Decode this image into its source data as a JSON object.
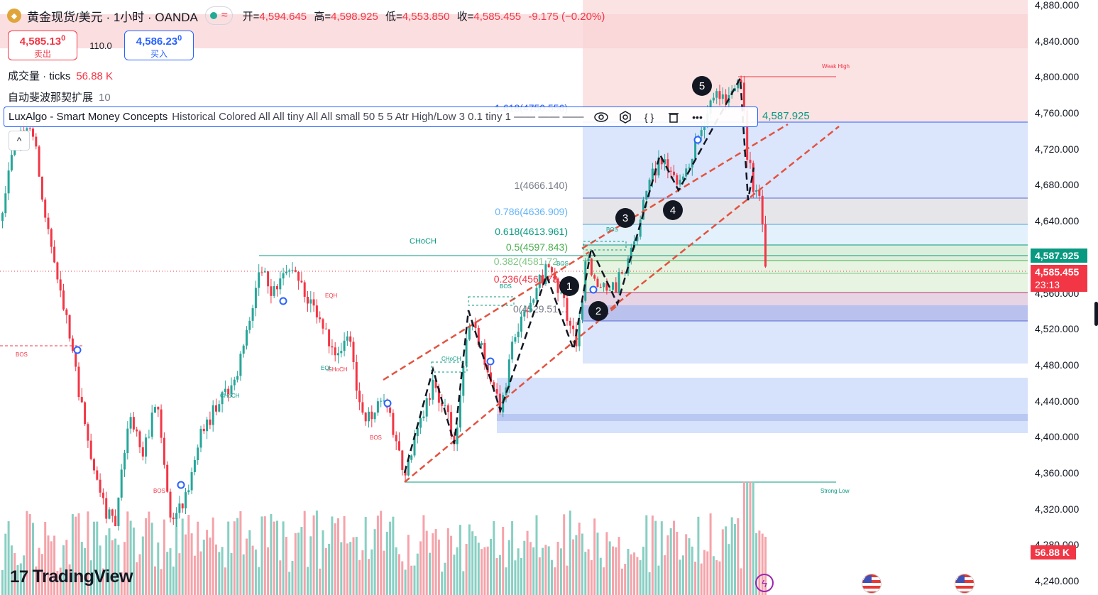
{
  "header": {
    "title": "黄金现货/美元 · 1小时 · OANDA",
    "open_label": "开=",
    "open": "4,594.645",
    "high_label": "高=",
    "high": "4,598.925",
    "low_label": "低=",
    "low": "4,553.850",
    "close_label": "收=",
    "close": "4,585.455",
    "change": "-9.175 (−0.20%)"
  },
  "trade": {
    "sell_price": "4,585.13",
    "sell_sup": "0",
    "sell_label": "卖出",
    "spread": "110.0",
    "buy_price": "4,586.23",
    "buy_sup": "0",
    "buy_label": "买入"
  },
  "indicators": {
    "volume_name": "成交量 · ticks",
    "volume_value": "56.88 K",
    "fib_name": "自动斐波那契扩展",
    "fib_value": "10",
    "lux_name": "LuxAlgo - Smart Money Concepts",
    "lux_args": "Historical Colored All All tiny All All small 50 5 5 Atr High/Low 3 0.1 tiny 1 —— —— ——",
    "lux_value": "4,587.925"
  },
  "icons": [
    "eye-icon",
    "settings-icon",
    "source-code-icon",
    "trash-icon",
    "more-icon",
    "collapse-icon",
    "tradingview-logo",
    "us-flag-icon",
    "lightning-icon"
  ],
  "branding": "TradingView",
  "price_labels": {
    "current": "4,587.925",
    "last": "4,585.455",
    "countdown": "23:13",
    "volume": "56.88 K"
  },
  "colors": {
    "up": "#26a69a",
    "down": "#f23645",
    "accent": "#2962ff",
    "fib_green": "#089981"
  },
  "chart_data": {
    "type": "candlestick",
    "y_axis": {
      "range": [
        4230,
        4885
      ],
      "ticks": [
        "4,880.000",
        "4,840.000",
        "4,800.000",
        "4,760.000",
        "4,720.000",
        "4,680.000",
        "4,640.000",
        "4,600.000",
        "4,560.000",
        "4,520.000",
        "4,480.000",
        "4,440.000",
        "4,400.000",
        "4,360.000",
        "4,320.000",
        "4,280.000",
        "4,240.000"
      ],
      "tick_values": [
        4880,
        4840,
        4800,
        4760,
        4720,
        4680,
        4640,
        4600,
        4560,
        4520,
        4480,
        4440,
        4400,
        4360,
        4320,
        4280,
        4240
      ]
    },
    "price_path": [
      [
        0,
        4640
      ],
      [
        20,
        4735
      ],
      [
        45,
        4740
      ],
      [
        60,
        4660
      ],
      [
        80,
        4580
      ],
      [
        100,
        4500
      ],
      [
        120,
        4400
      ],
      [
        140,
        4330
      ],
      [
        160,
        4300
      ],
      [
        180,
        4420
      ],
      [
        200,
        4380
      ],
      [
        220,
        4440
      ],
      [
        240,
        4300
      ],
      [
        260,
        4330
      ],
      [
        280,
        4400
      ],
      [
        300,
        4430
      ],
      [
        330,
        4460
      ],
      [
        350,
        4530
      ],
      [
        365,
        4590
      ],
      [
        380,
        4560
      ],
      [
        410,
        4590
      ],
      [
        430,
        4560
      ],
      [
        450,
        4525
      ],
      [
        470,
        4490
      ],
      [
        490,
        4520
      ],
      [
        505,
        4430
      ],
      [
        520,
        4420
      ],
      [
        540,
        4450
      ],
      [
        555,
        4390
      ],
      [
        570,
        4360
      ],
      [
        585,
        4400
      ],
      [
        610,
        4460
      ],
      [
        625,
        4430
      ],
      [
        640,
        4395
      ],
      [
        660,
        4530
      ],
      [
        680,
        4490
      ],
      [
        695,
        4450
      ],
      [
        705,
        4430
      ],
      [
        720,
        4500
      ],
      [
        740,
        4540
      ],
      [
        770,
        4590
      ],
      [
        790,
        4560
      ],
      [
        810,
        4500
      ],
      [
        825,
        4600
      ],
      [
        840,
        4570
      ],
      [
        860,
        4560
      ],
      [
        880,
        4590
      ],
      [
        900,
        4640
      ],
      [
        915,
        4685
      ],
      [
        930,
        4710
      ],
      [
        945,
        4690
      ],
      [
        960,
        4680
      ],
      [
        975,
        4720
      ],
      [
        990,
        4750
      ],
      [
        1005,
        4780
      ],
      [
        1020,
        4775
      ],
      [
        1045,
        4795
      ],
      [
        1050,
        4720
      ],
      [
        1060,
        4680
      ],
      [
        1070,
        4660
      ],
      [
        1075,
        4600
      ],
      [
        1080,
        4585
      ]
    ],
    "volume_profile": "tick volume bars along bottom, peak near current bar",
    "fib_levels": [
      {
        "label": "1(4666.140)",
        "value": 4666.14,
        "color": "#787b86"
      },
      {
        "label": "0.786(4636.909)",
        "value": 4636.909,
        "color": "#64b5f6"
      },
      {
        "label": "0.618(4613.961)",
        "value": 4613.961,
        "color": "#089981"
      },
      {
        "label": "0.5(4597.843)",
        "value": 4597.843,
        "color": "#4caf50"
      },
      {
        "label": "0.382(4581.72…",
        "value": 4581.72,
        "color": "#81c784"
      },
      {
        "label": "0.236(4561.78…",
        "value": 4561.78,
        "color": "#f23645"
      },
      {
        "label": "0(4529.51…",
        "value": 4529.51,
        "color": "#787b86"
      },
      {
        "label": "1.618(4750.556)",
        "value": 4750.556,
        "color": "#2962ff"
      }
    ],
    "smc_labels": [
      "CHoCH",
      "BOS",
      "EQH",
      "EQL",
      "CHoCH",
      "BOS",
      "CHoCH",
      "BOS",
      "BOS",
      "CHoCH",
      "BOS",
      "BOS",
      "BOS",
      "Weak High",
      "Strong Low"
    ],
    "wave_points": [
      {
        "label": "1",
        "x": 802,
        "y": 4588
      },
      {
        "label": "2",
        "x": 843,
        "y": 4550
      },
      {
        "label": "3",
        "x": 881,
        "y": 4623
      },
      {
        "label": "4",
        "x": 948,
        "y": 4651
      },
      {
        "label": "5",
        "x": 989,
        "y": 4788
      }
    ],
    "legend": "none",
    "grid": false
  }
}
